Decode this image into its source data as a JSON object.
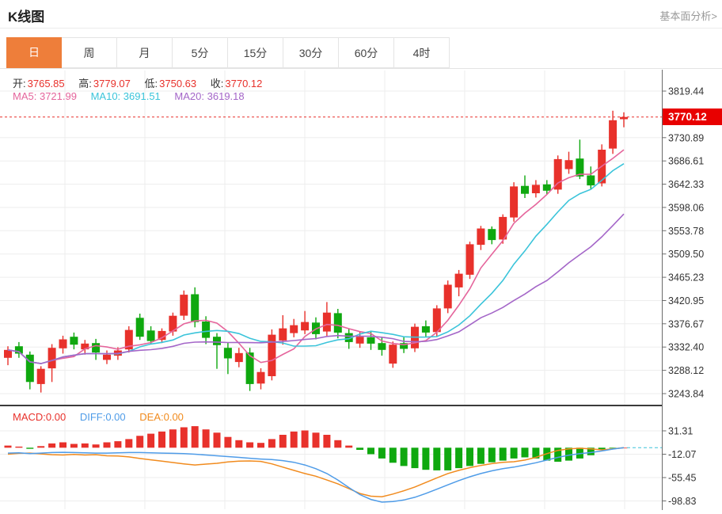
{
  "header": {
    "title": "K线图",
    "link": "基本面分析>"
  },
  "tabs": {
    "items": [
      "日",
      "周",
      "月",
      "5分",
      "15分",
      "30分",
      "60分",
      "4时"
    ],
    "selected_index": 0
  },
  "ohlc": {
    "o_label": "开:",
    "o": "3765.85",
    "h_label": "高:",
    "h": "3779.07",
    "l_label": "低:",
    "l": "3750.63",
    "c_label": "收:",
    "c": "3770.12"
  },
  "ma": {
    "ma5_label": "MA5:",
    "ma5_value": "3721.99",
    "ma10_label": "MA10:",
    "ma10_value": "3691.51",
    "ma20_label": "MA20:",
    "ma20_value": "3619.18"
  },
  "macd_legend": {
    "macd_label": "MACD:",
    "macd_value": "0.00",
    "diff_label": "DIFF:",
    "diff_value": "0.00",
    "dea_label": "DEA:",
    "dea_value": "0.00"
  },
  "colors": {
    "up": "#e8312b",
    "down": "#0fa80f",
    "ma5": "#e5659c",
    "ma10": "#3bc4da",
    "ma20": "#a466c8",
    "diff": "#4f9ce8",
    "dea": "#f18b1e",
    "tab_selected": "#ee7e3a",
    "tag_bg": "#e80000",
    "grid": "#ededed",
    "muted": "#999999",
    "label": "#333333"
  },
  "chart_data": {
    "type": "candlestick+macd",
    "period_selected": "日",
    "price_axis": {
      "ticks": [
        3819.44,
        3730.89,
        3686.61,
        3642.33,
        3598.06,
        3553.78,
        3509.5,
        3465.23,
        3420.95,
        3376.67,
        3332.4,
        3288.12,
        3243.84
      ],
      "current_price": 3770.12,
      "current_price_label": "3770.12",
      "ylim": [
        3243.84,
        3819.44
      ]
    },
    "macd_axis": {
      "ticks": [
        31.31,
        -12.07,
        -55.45,
        -98.83
      ],
      "ylim": [
        -110,
        45
      ]
    },
    "ma_periods": [
      5,
      10,
      20
    ],
    "candles": [
      [
        3312,
        3334,
        3298,
        3327
      ],
      [
        3334,
        3342,
        3312,
        3320
      ],
      [
        3318,
        3324,
        3252,
        3266
      ],
      [
        3262,
        3296,
        3246,
        3291
      ],
      [
        3292,
        3338,
        3266,
        3331
      ],
      [
        3330,
        3354,
        3320,
        3347
      ],
      [
        3352,
        3360,
        3328,
        3337
      ],
      [
        3328,
        3346,
        3318,
        3339
      ],
      [
        3340,
        3348,
        3308,
        3322
      ],
      [
        3308,
        3326,
        3300,
        3318
      ],
      [
        3316,
        3332,
        3308,
        3326
      ],
      [
        3328,
        3372,
        3322,
        3365
      ],
      [
        3388,
        3396,
        3346,
        3352
      ],
      [
        3364,
        3372,
        3338,
        3344
      ],
      [
        3346,
        3368,
        3340,
        3363
      ],
      [
        3362,
        3398,
        3354,
        3392
      ],
      [
        3392,
        3440,
        3384,
        3432
      ],
      [
        3433,
        3446,
        3370,
        3380
      ],
      [
        3381,
        3391,
        3338,
        3350
      ],
      [
        3352,
        3359,
        3291,
        3336
      ],
      [
        3331,
        3341,
        3281,
        3311
      ],
      [
        3304,
        3331,
        3294,
        3321
      ],
      [
        3322,
        3331,
        3249,
        3262
      ],
      [
        3263,
        3292,
        3252,
        3285
      ],
      [
        3277,
        3366,
        3269,
        3356
      ],
      [
        3345,
        3393,
        3337,
        3368
      ],
      [
        3359,
        3386,
        3351,
        3374
      ],
      [
        3364,
        3401,
        3357,
        3380
      ],
      [
        3379,
        3389,
        3347,
        3357
      ],
      [
        3362,
        3418,
        3353,
        3398
      ],
      [
        3397,
        3405,
        3349,
        3360
      ],
      [
        3359,
        3367,
        3329,
        3342
      ],
      [
        3339,
        3361,
        3331,
        3352
      ],
      [
        3351,
        3363,
        3327,
        3339
      ],
      [
        3340,
        3351,
        3316,
        3327
      ],
      [
        3301,
        3343,
        3293,
        3337
      ],
      [
        3340,
        3351,
        3321,
        3329
      ],
      [
        3330,
        3377,
        3323,
        3371
      ],
      [
        3372,
        3383,
        3351,
        3360
      ],
      [
        3361,
        3412,
        3353,
        3406
      ],
      [
        3406,
        3459,
        3397,
        3451
      ],
      [
        3446,
        3479,
        3429,
        3472
      ],
      [
        3470,
        3533,
        3462,
        3528
      ],
      [
        3527,
        3563,
        3517,
        3558
      ],
      [
        3557,
        3562,
        3528,
        3536
      ],
      [
        3537,
        3585,
        3529,
        3580
      ],
      [
        3579,
        3646,
        3571,
        3638
      ],
      [
        3639,
        3659,
        3616,
        3624
      ],
      [
        3625,
        3650,
        3617,
        3641
      ],
      [
        3642,
        3650,
        3622,
        3630
      ],
      [
        3632,
        3697,
        3624,
        3690
      ],
      [
        3671,
        3704,
        3662,
        3688
      ],
      [
        3691,
        3727,
        3652,
        3657
      ],
      [
        3659,
        3676,
        3633,
        3640
      ],
      [
        3644,
        3718,
        3638,
        3708
      ],
      [
        3710,
        3782,
        3700,
        3764
      ],
      [
        3765.85,
        3779.07,
        3750.63,
        3770.12
      ]
    ],
    "macd_hist": [
      4,
      2,
      -2,
      3,
      8,
      10,
      7,
      8,
      6,
      10,
      12,
      16,
      22,
      26,
      30,
      34,
      38,
      40,
      34,
      28,
      20,
      14,
      10,
      9,
      16,
      24,
      30,
      32,
      28,
      24,
      14,
      4,
      -4,
      -12,
      -20,
      -28,
      -34,
      -38,
      -41,
      -42,
      -42,
      -38,
      -34,
      -30,
      -27,
      -24,
      -20,
      -18,
      -20,
      -24,
      -26,
      -24,
      -20,
      -14,
      -4,
      -1,
      0
    ],
    "diff": [
      -10,
      -9.5,
      -11,
      -10,
      -9,
      -8.5,
      -9,
      -9.5,
      -10,
      -10,
      -9.5,
      -9,
      -9,
      -9.5,
      -10,
      -10.5,
      -11,
      -12,
      -13.5,
      -15,
      -16.5,
      -18,
      -19.5,
      -21,
      -22,
      -24,
      -27,
      -32,
      -39,
      -48,
      -60,
      -74,
      -87,
      -96,
      -101,
      -100,
      -97,
      -92,
      -85,
      -77,
      -69,
      -61,
      -54,
      -48,
      -43,
      -39,
      -36,
      -32,
      -28,
      -23,
      -18,
      -14,
      -11,
      -9,
      -6,
      -2.5,
      0
    ]
  }
}
